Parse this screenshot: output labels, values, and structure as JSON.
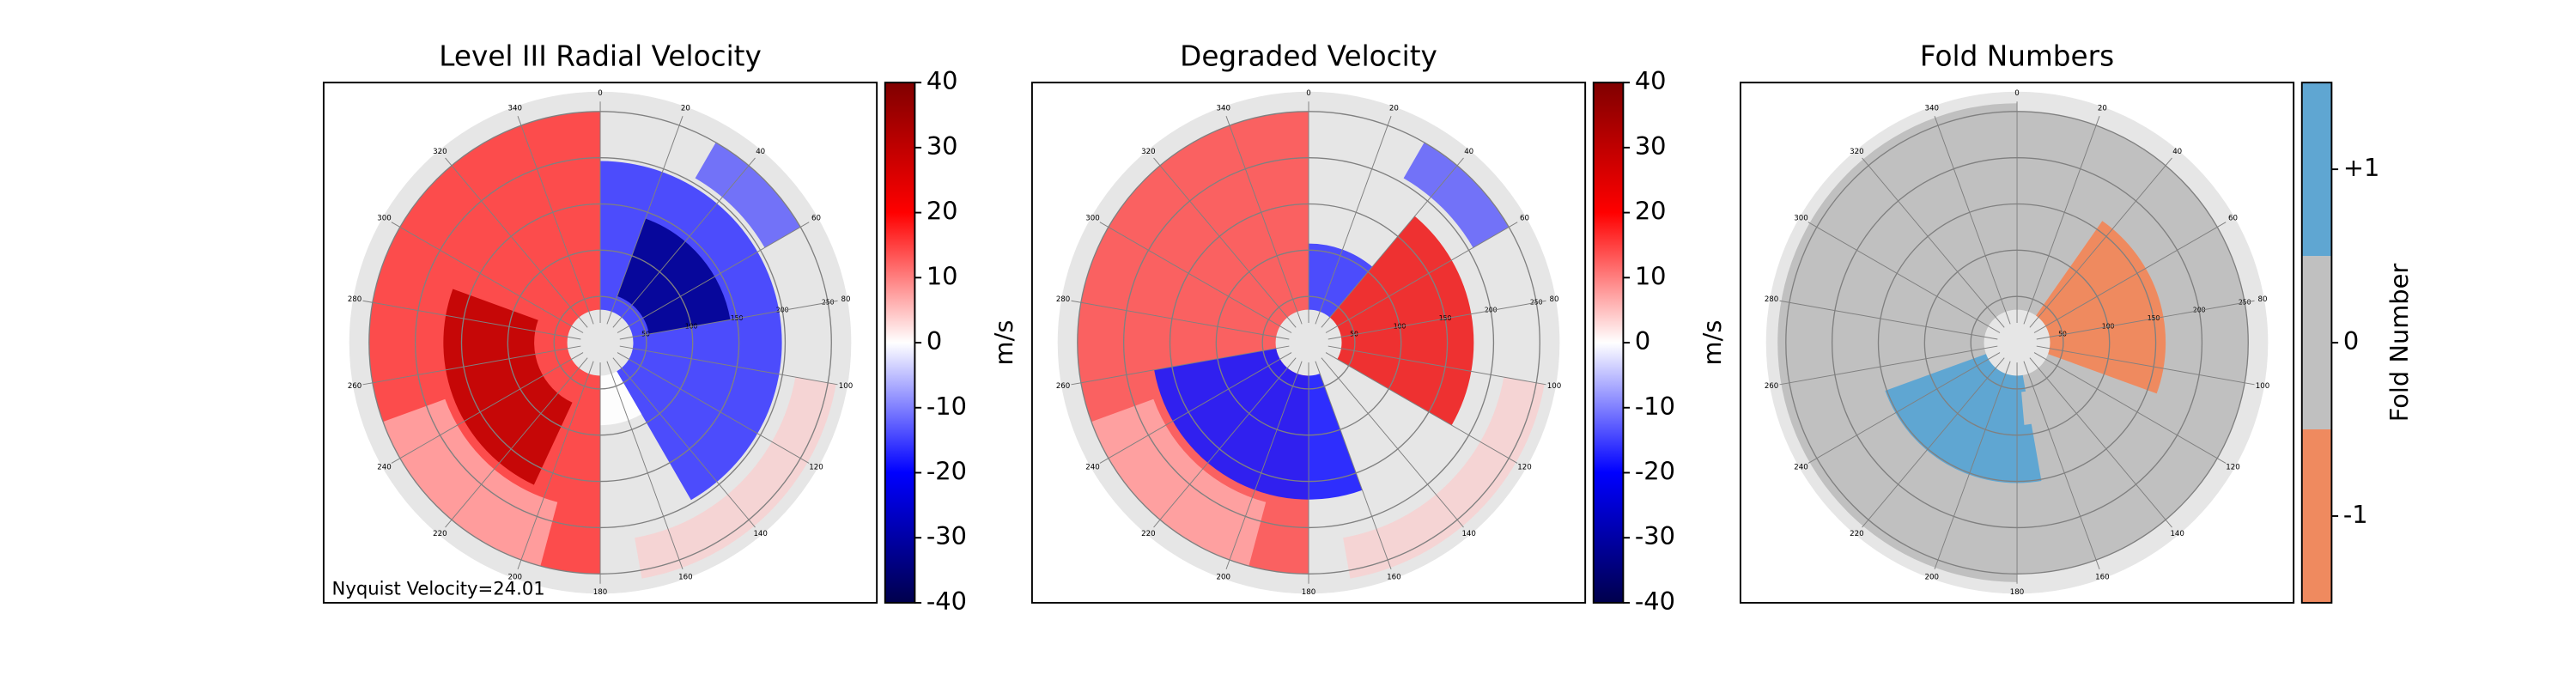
{
  "chart_data": [
    {
      "type": "polar_heatmap",
      "title": "Level III Radial Velocity",
      "annotation": "Nyquist Velocity=24.01",
      "theta_ticks": [
        0,
        20,
        40,
        60,
        80,
        100,
        120,
        140,
        160,
        180,
        200,
        220,
        240,
        260,
        280,
        300,
        320,
        340
      ],
      "rlim": [
        0,
        250
      ],
      "r_ticks": [
        50,
        100,
        150,
        200,
        250
      ],
      "colorbar": {
        "label": "m/s",
        "lim": [
          -40,
          40
        ],
        "ticks": [
          40,
          30,
          20,
          10,
          0,
          -10,
          -20,
          -30,
          -40
        ],
        "colors": [
          "#00004c",
          "#0000ff",
          "#ffffff",
          "#ff0000",
          "#800000"
        ]
      }
    },
    {
      "type": "polar_heatmap",
      "title": "Degraded Velocity",
      "theta_ticks": [
        0,
        20,
        40,
        60,
        80,
        100,
        120,
        140,
        160,
        180,
        200,
        220,
        240,
        260,
        280,
        300,
        320,
        340
      ],
      "rlim": [
        0,
        250
      ],
      "r_ticks": [
        50,
        100,
        150,
        200,
        250
      ],
      "colorbar": {
        "label": "m/s",
        "lim": [
          -40,
          40
        ],
        "ticks": [
          40,
          30,
          20,
          10,
          0,
          -10,
          -20,
          -30,
          -40
        ],
        "colors": [
          "#00004c",
          "#0000ff",
          "#ffffff",
          "#ff0000",
          "#800000"
        ]
      }
    },
    {
      "type": "polar_categorical",
      "title": "Fold Numbers",
      "theta_ticks": [
        0,
        20,
        40,
        60,
        80,
        100,
        120,
        140,
        160,
        180,
        200,
        220,
        240,
        260,
        280,
        300,
        320,
        340
      ],
      "rlim": [
        0,
        250
      ],
      "r_ticks": [
        50,
        100,
        150,
        200,
        250
      ],
      "colorbar": {
        "label": "Fold Number",
        "lim": [
          -1.5,
          1.5
        ],
        "ticks": [
          {
            "value": 1,
            "label": "+1"
          },
          0,
          {
            "value": -1,
            "label": "-1"
          }
        ],
        "boundaries": [
          -1.5,
          -0.5,
          0.5,
          1.5
        ],
        "colors": [
          "#ef8a5f",
          "#c0c0c0",
          "#5fa6d2"
        ]
      }
    }
  ]
}
